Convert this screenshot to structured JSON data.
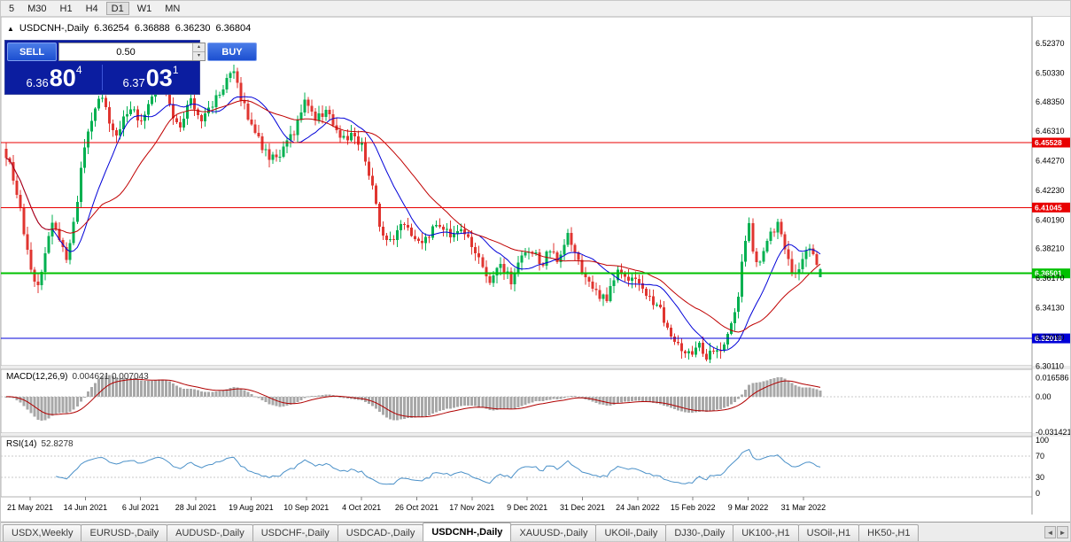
{
  "toolbar": {
    "timeframes": [
      "5",
      "M30",
      "H1",
      "H4",
      "D1",
      "W1",
      "MN"
    ],
    "active": "D1"
  },
  "icons": {
    "collapse": "▲",
    "volume_up": "▴",
    "volume_down": "▾",
    "tab_scroll_left": "◄",
    "tab_scroll_right": "►"
  },
  "chart_header": {
    "marker": "▲",
    "symbol": "USDCNH-,Daily"
  },
  "trade_panel": {
    "sell_label": "SELL",
    "buy_label": "BUY",
    "volume": "0.50",
    "sell_price_prefix": "6.36",
    "sell_price_big": "80",
    "sell_price_sup": "4",
    "buy_price_prefix": "6.37",
    "buy_price_big": "03",
    "buy_price_sup": "1"
  },
  "chart_data": {
    "type": "candlestick",
    "symbol": "USDCNH-",
    "timeframe": "Daily",
    "ohlc_header": {
      "open": "6.36254",
      "high": "6.36888",
      "low": "6.36230",
      "close": "6.36804"
    },
    "last_candle": {
      "open": 6.36254,
      "high": 6.36888,
      "low": 6.3623,
      "close": 6.36804
    },
    "ylim": [
      6.3013,
      6.542
    ],
    "num_candles": 230,
    "price_axis_labels": [
      "6.52370",
      "6.50330",
      "6.48350",
      "6.46310",
      "6.44270",
      "6.42230",
      "6.40190",
      "6.38210",
      "6.36170",
      "6.34130",
      "6.32090",
      "6.30110"
    ],
    "date_axis_labels": [
      "21 May 2021",
      "14 Jun 2021",
      "6 Jul 2021",
      "28 Jul 2021",
      "19 Aug 2021",
      "10 Sep 2021",
      "4 Oct 2021",
      "26 Oct 2021",
      "17 Nov 2021",
      "9 Dec 2021",
      "31 Dec 2021",
      "24 Jan 2022",
      "15 Feb 2022",
      "9 Mar 2022",
      "31 Mar 2022"
    ],
    "colors": {
      "up": "#00B050",
      "down": "#E03530",
      "ma_fast": "#0000D8",
      "ma_slow": "#C00000",
      "macd_hist": "#A8A8A8",
      "macd_signal": "#B00000",
      "rsi": "#4A90C8",
      "hline_red": "#E80000",
      "hline_green": "#00C000",
      "hline_blue": "#0000D8"
    },
    "hlines": [
      {
        "price": 6.45528,
        "label": "6.45528",
        "color": "#E80000",
        "width": 1
      },
      {
        "price": 6.41045,
        "label": "6.41045",
        "color": "#E80000",
        "width": 1
      },
      {
        "price": 6.36501,
        "label": "6.36501",
        "color": "#00C000",
        "width": 2
      },
      {
        "price": 6.32018,
        "label": "6.32018",
        "color": "#0000D8",
        "width": 1
      }
    ],
    "ma_periods": {
      "fast": 14,
      "slow": 28
    },
    "price_path": [
      [
        0.0,
        6.447
      ],
      [
        0.012,
        6.425
      ],
      [
        0.022,
        6.392
      ],
      [
        0.032,
        6.36
      ],
      [
        0.04,
        6.356
      ],
      [
        0.048,
        6.38
      ],
      [
        0.056,
        6.4
      ],
      [
        0.065,
        6.39
      ],
      [
        0.075,
        6.373
      ],
      [
        0.085,
        6.405
      ],
      [
        0.095,
        6.45
      ],
      [
        0.105,
        6.47
      ],
      [
        0.115,
        6.49
      ],
      [
        0.125,
        6.472
      ],
      [
        0.135,
        6.458
      ],
      [
        0.15,
        6.48
      ],
      [
        0.165,
        6.471
      ],
      [
        0.18,
        6.488
      ],
      [
        0.19,
        6.498
      ],
      [
        0.2,
        6.481
      ],
      [
        0.212,
        6.463
      ],
      [
        0.225,
        6.487
      ],
      [
        0.24,
        6.472
      ],
      [
        0.255,
        6.483
      ],
      [
        0.27,
        6.497
      ],
      [
        0.28,
        6.504
      ],
      [
        0.29,
        6.483
      ],
      [
        0.3,
        6.47
      ],
      [
        0.312,
        6.455
      ],
      [
        0.325,
        6.443
      ],
      [
        0.34,
        6.449
      ],
      [
        0.355,
        6.464
      ],
      [
        0.368,
        6.487
      ],
      [
        0.38,
        6.472
      ],
      [
        0.395,
        6.477
      ],
      [
        0.41,
        6.457
      ],
      [
        0.425,
        6.461
      ],
      [
        0.438,
        6.452
      ],
      [
        0.45,
        6.424
      ],
      [
        0.46,
        6.393
      ],
      [
        0.47,
        6.385
      ],
      [
        0.485,
        6.398
      ],
      [
        0.5,
        6.391
      ],
      [
        0.515,
        6.387
      ],
      [
        0.53,
        6.4
      ],
      [
        0.545,
        6.391
      ],
      [
        0.558,
        6.397
      ],
      [
        0.57,
        6.388
      ],
      [
        0.582,
        6.372
      ],
      [
        0.595,
        6.357
      ],
      [
        0.607,
        6.371
      ],
      [
        0.62,
        6.36
      ],
      [
        0.632,
        6.376
      ],
      [
        0.645,
        6.381
      ],
      [
        0.658,
        6.371
      ],
      [
        0.668,
        6.382
      ],
      [
        0.678,
        6.371
      ],
      [
        0.69,
        6.391
      ],
      [
        0.7,
        6.378
      ],
      [
        0.712,
        6.361
      ],
      [
        0.725,
        6.352
      ],
      [
        0.737,
        6.347
      ],
      [
        0.75,
        6.367
      ],
      [
        0.762,
        6.359
      ],
      [
        0.775,
        6.363
      ],
      [
        0.787,
        6.349
      ],
      [
        0.8,
        6.344
      ],
      [
        0.81,
        6.331
      ],
      [
        0.82,
        6.321
      ],
      [
        0.83,
        6.314
      ],
      [
        0.84,
        6.309
      ],
      [
        0.85,
        6.317
      ],
      [
        0.858,
        6.307
      ],
      [
        0.868,
        6.311
      ],
      [
        0.878,
        6.314
      ],
      [
        0.888,
        6.324
      ],
      [
        0.898,
        6.344
      ],
      [
        0.906,
        6.381
      ],
      [
        0.912,
        6.404
      ],
      [
        0.918,
        6.379
      ],
      [
        0.925,
        6.371
      ],
      [
        0.933,
        6.384
      ],
      [
        0.94,
        6.394
      ],
      [
        0.948,
        6.399
      ],
      [
        0.955,
        6.387
      ],
      [
        0.962,
        6.374
      ],
      [
        0.968,
        6.361
      ],
      [
        0.975,
        6.371
      ],
      [
        0.982,
        6.384
      ],
      [
        0.99,
        6.377
      ],
      [
        1.0,
        6.368
      ]
    ],
    "indicators": {
      "macd": {
        "label": "MACD(12,26,9)",
        "values": "0.004621 0.007043",
        "axis_labels": [
          "0.016586",
          "0.00",
          "-0.031421"
        ],
        "ylim": [
          -0.032,
          0.024
        ],
        "params": [
          12,
          26,
          9
        ]
      },
      "rsi": {
        "label": "RSI(14)",
        "value": "52.8278",
        "axis_labels": [
          "100",
          "70",
          "30",
          "0"
        ],
        "levels": [
          70,
          30
        ],
        "period": 14
      }
    }
  },
  "tabs": {
    "items": [
      "USDX,Weekly",
      "EURUSD-,Daily",
      "AUDUSD-,Daily",
      "USDCHF-,Daily",
      "USDCAD-,Daily",
      "USDCNH-,Daily",
      "XAUUSD-,Daily",
      "UKOil-,Daily",
      "DJ30-,Daily",
      "UK100-,H1",
      "USOil-,H1",
      "HK50-,H1"
    ],
    "active_index": 5,
    "active": "USDCNH-,Daily"
  }
}
